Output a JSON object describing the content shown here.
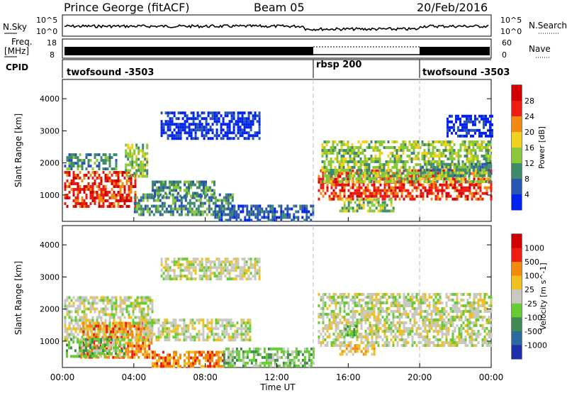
{
  "header": {
    "station": "Prince George (fitACF)",
    "beam": "Beam 05",
    "date": "20/Feb/2016"
  },
  "noise_panel": {
    "left_label": "N.Sky",
    "left_ticks": [
      "10^5",
      "10^0"
    ],
    "right_label": "N.Search",
    "right_ticks": [
      "10^5",
      "10^0"
    ]
  },
  "freq_panel": {
    "left_label_1": "Freq.",
    "left_label_2": "[MHz]",
    "left_ticks": [
      "18",
      "8"
    ],
    "right_label": "Nave",
    "right_ticks": [
      "60",
      "0"
    ]
  },
  "cpid": {
    "label": "CPID",
    "segments": [
      {
        "name": "twofsound -3503",
        "start_hr": 0,
        "end_hr": 14
      },
      {
        "name": "rbsp 200",
        "start_hr": 14,
        "end_hr": 20
      },
      {
        "name": "twofsound -3503",
        "start_hr": 20,
        "end_hr": 24
      }
    ]
  },
  "x_axis": {
    "label": "Time UT",
    "ticks": [
      "00:00",
      "04:00",
      "08:00",
      "12:00",
      "16:00",
      "20:00",
      "00:00"
    ]
  },
  "chart_data": [
    {
      "type": "heatmap",
      "title": "",
      "xlabel": "Time UT",
      "ylabel": "Slant Range [km]",
      "xlim_hours": [
        0,
        24
      ],
      "ylim": [
        180,
        4600
      ],
      "yticks": [
        1000,
        2000,
        3000,
        4000
      ],
      "colorbar_label": "Power [dB]",
      "colorbar_ticks": [
        "28",
        "24",
        "20",
        "16",
        "12",
        "8",
        "4"
      ],
      "colors": [
        "#0022ee",
        "#2a55b0",
        "#3f8a6a",
        "#8ac83a",
        "#f2d020",
        "#f28a10",
        "#ee1c10",
        "#d00000"
      ],
      "blobs": [
        {
          "t0": 0.1,
          "t1": 4.1,
          "r0": 620,
          "r1": 1750,
          "level": 6
        },
        {
          "t0": 0.1,
          "t1": 3.0,
          "r0": 1800,
          "r1": 2300,
          "level": 2
        },
        {
          "t0": 3.5,
          "t1": 4.8,
          "r0": 1600,
          "r1": 2600,
          "level": 3
        },
        {
          "t0": 4.0,
          "t1": 9.5,
          "r0": 350,
          "r1": 1050,
          "level": 2
        },
        {
          "t0": 5.0,
          "t1": 8.5,
          "r0": 950,
          "r1": 1450,
          "level": 2
        },
        {
          "t0": 8.5,
          "t1": 14.0,
          "r0": 200,
          "r1": 700,
          "level": 1
        },
        {
          "t0": 5.5,
          "t1": 11.0,
          "r0": 2800,
          "r1": 3600,
          "level": 0
        },
        {
          "t0": 14.3,
          "t1": 24.0,
          "r0": 850,
          "r1": 1800,
          "level": 6
        },
        {
          "t0": 14.5,
          "t1": 24.0,
          "r0": 1400,
          "r1": 2700,
          "level": 3
        },
        {
          "t0": 15.5,
          "t1": 18.5,
          "r0": 500,
          "r1": 900,
          "level": 3
        },
        {
          "t0": 20.0,
          "t1": 24.0,
          "r0": 1600,
          "r1": 2000,
          "level": 2
        },
        {
          "t0": 21.5,
          "t1": 24.0,
          "r0": 2800,
          "r1": 3500,
          "level": 0
        }
      ]
    },
    {
      "type": "heatmap",
      "title": "",
      "xlabel": "Time UT",
      "ylabel": "Slant Range [km]",
      "xlim_hours": [
        0,
        24
      ],
      "ylim": [
        180,
        4600
      ],
      "yticks": [
        1000,
        2000,
        3000,
        4000
      ],
      "colorbar_label": "Velocity [m s^-1]",
      "colorbar_ticks": [
        "1000",
        "500",
        "100",
        "25",
        "-25",
        "-100",
        "-500",
        "-1000"
      ],
      "colors": [
        "#1c2fa8",
        "#2a6aa0",
        "#3f8a50",
        "#66cc33",
        "#c8c8c0",
        "#f0c020",
        "#f28a10",
        "#ee1c10",
        "#d00000"
      ],
      "blobs": [
        {
          "t0": 0.1,
          "t1": 5.0,
          "r0": 1000,
          "r1": 2400,
          "level": 4
        },
        {
          "t0": 1.0,
          "t1": 5.0,
          "r0": 500,
          "r1": 1600,
          "level": 6
        },
        {
          "t0": 0.2,
          "t1": 3.5,
          "r0": 500,
          "r1": 1100,
          "level": 3
        },
        {
          "t0": 5.0,
          "t1": 9.0,
          "r0": 200,
          "r1": 700,
          "level": 6
        },
        {
          "t0": 4.5,
          "t1": 10.5,
          "r0": 1000,
          "r1": 1700,
          "level": 4
        },
        {
          "t0": 9.0,
          "t1": 14.0,
          "r0": 200,
          "r1": 800,
          "level": 3
        },
        {
          "t0": 5.5,
          "t1": 11.0,
          "r0": 2900,
          "r1": 3600,
          "level": 4
        },
        {
          "t0": 14.3,
          "t1": 24.0,
          "r0": 850,
          "r1": 2500,
          "level": 4
        },
        {
          "t0": 15.8,
          "t1": 16.4,
          "r0": 1200,
          "r1": 1500,
          "level": 3
        },
        {
          "t0": 15.5,
          "t1": 17.5,
          "r0": 550,
          "r1": 900,
          "level": 5
        }
      ]
    }
  ]
}
